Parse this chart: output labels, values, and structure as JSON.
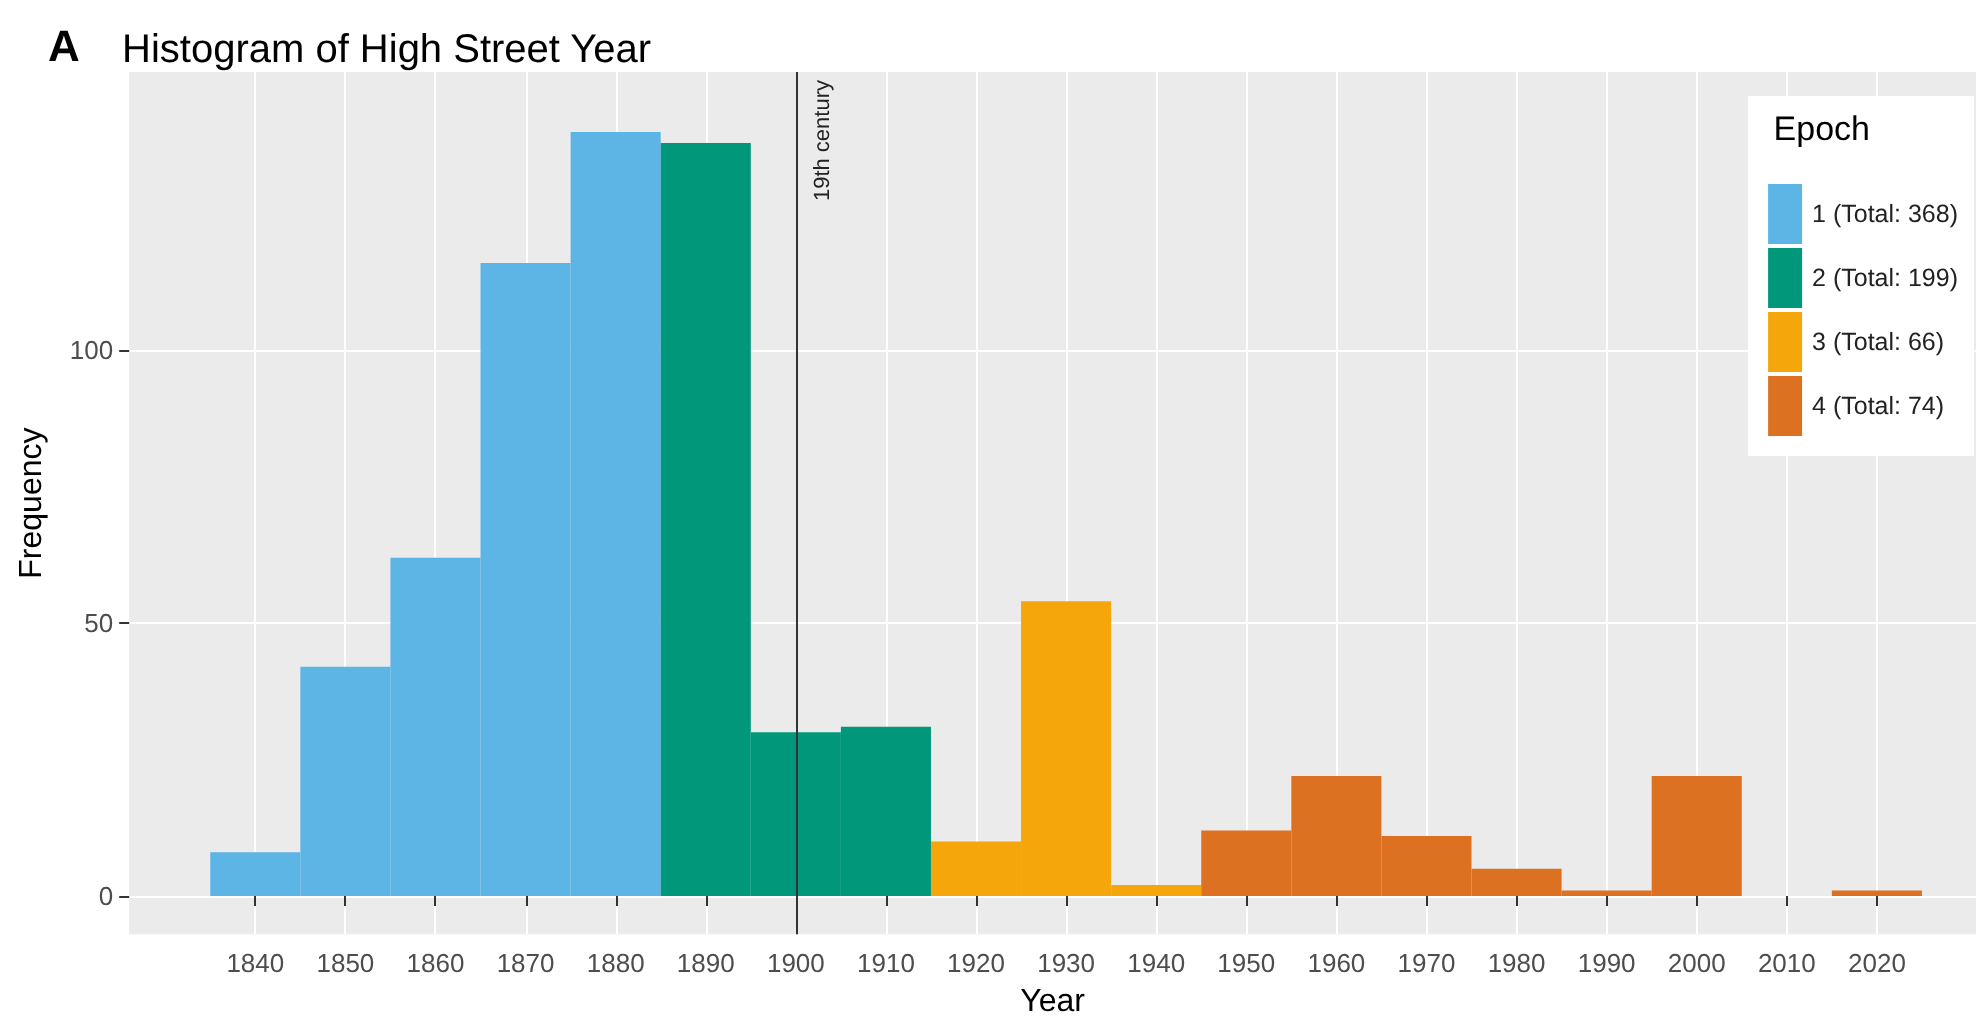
{
  "chart_data": {
    "type": "histogram",
    "title": "Histogram of High Street Year",
    "annotations": [
      "A"
    ],
    "xlabel": "Year",
    "ylabel": "Frequency",
    "legend_title": "Epoch",
    "legend": "top right",
    "grid": true,
    "bins": [
      1835,
      1845,
      1855,
      1865,
      1875,
      1885,
      1895,
      1905,
      1915,
      1925,
      1935,
      1945,
      1955,
      1965,
      1975,
      1985,
      1995,
      2005,
      2015,
      2025
    ],
    "series": [
      {
        "name": "1 (Total: 368)",
        "color": "#5db5e6",
        "values": [
          8,
          42,
          62,
          116,
          140,
          null,
          null,
          null,
          null,
          null,
          null,
          null,
          null,
          null,
          null,
          null,
          null,
          null,
          null
        ]
      },
      {
        "name": "2 (Total: 199)",
        "color": "#00977a",
        "values": [
          null,
          null,
          null,
          null,
          null,
          138,
          30,
          31,
          null,
          null,
          null,
          null,
          null,
          null,
          null,
          null,
          null,
          null,
          null
        ]
      },
      {
        "name": "3 (Total: 66)",
        "color": "#f4a60b",
        "values": [
          null,
          null,
          null,
          null,
          null,
          null,
          null,
          null,
          10,
          54,
          2,
          null,
          null,
          null,
          null,
          null,
          null,
          null,
          null
        ]
      },
      {
        "name": "4 (Total: 74)",
        "color": "#dc7221",
        "values": [
          null,
          null,
          null,
          null,
          null,
          null,
          null,
          null,
          null,
          null,
          null,
          12,
          22,
          11,
          5,
          1,
          22,
          0,
          1
        ]
      }
    ],
    "xlim": [
      1826,
      2031
    ],
    "xticks": [
      1840,
      1850,
      1860,
      1870,
      1880,
      1890,
      1900,
      1910,
      1920,
      1930,
      1940,
      1950,
      1960,
      1970,
      1980,
      1990,
      2000,
      2010,
      2020
    ],
    "ylim": [
      -7,
      151
    ],
    "yticks": [
      0,
      50,
      100
    ],
    "ref_lines": [
      {
        "axis": "x",
        "value": 1900,
        "label": "19th century",
        "color": "#333333"
      }
    ]
  }
}
